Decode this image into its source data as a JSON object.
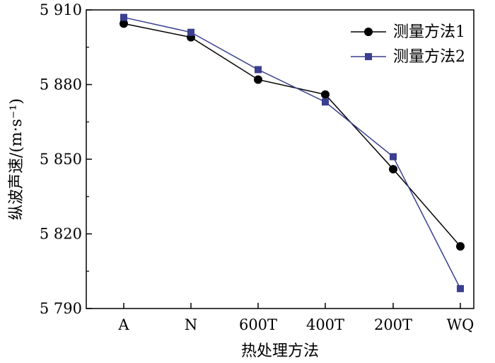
{
  "chart_data": {
    "type": "line",
    "title": "",
    "xlabel": "热处理方法",
    "ylabel": "纵波声速/(m·s⁻¹)",
    "categories": [
      "A",
      "N",
      "600T",
      "400T",
      "200T",
      "WQ"
    ],
    "ylim": [
      5790,
      5910
    ],
    "yticks": [
      5790,
      5820,
      5850,
      5880,
      5910
    ],
    "ytick_labels": [
      "5 790",
      "5 820",
      "5 850",
      "5 880",
      "5 910"
    ],
    "legend_position": "top-right",
    "series": [
      {
        "name": "测量方法1",
        "marker": "circle",
        "color": "#000000",
        "values": [
          5904.5,
          5899.0,
          5882.0,
          5876.0,
          5846.0,
          5815.0
        ]
      },
      {
        "name": "测量方法2",
        "marker": "square",
        "color": "#3a3f8f",
        "values": [
          5907.0,
          5901.0,
          5886.0,
          5873.0,
          5851.0,
          5798.0
        ]
      }
    ]
  }
}
